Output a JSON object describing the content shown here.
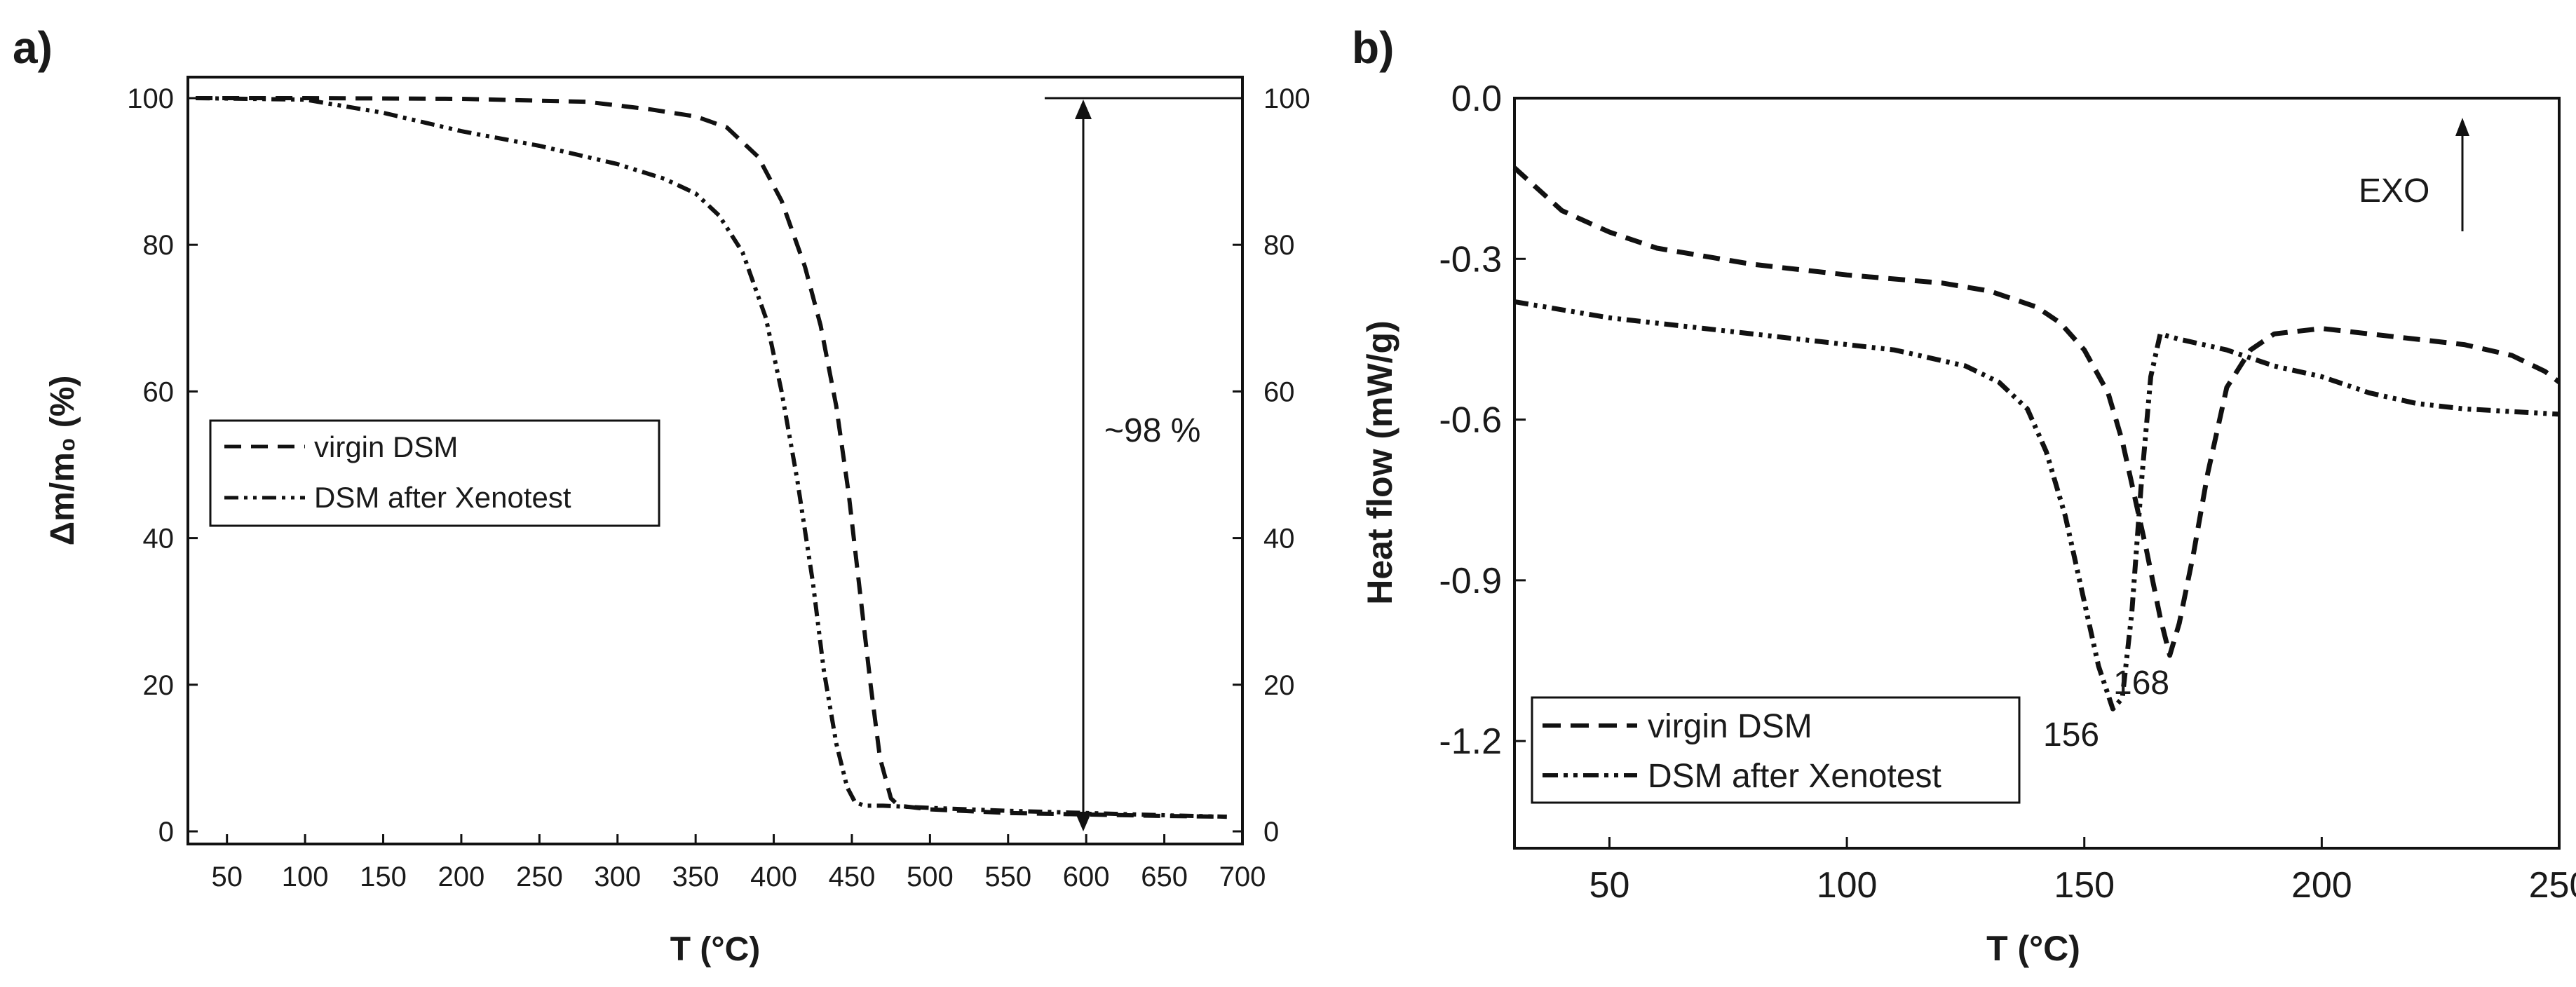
{
  "chart_data": [
    {
      "panel": "a)",
      "type": "line",
      "xlabel": "T (°C)",
      "ylabel": "Δm/m₀ (%)",
      "xlim": [
        25,
        700
      ],
      "ylim": [
        0,
        100
      ],
      "y2lim": [
        0,
        100
      ],
      "xticks": [
        "50",
        "100",
        "150",
        "200",
        "250",
        "300",
        "350",
        "400",
        "450",
        "500",
        "550",
        "600",
        "650",
        "700"
      ],
      "yticks": [
        "0",
        "20",
        "40",
        "60",
        "80",
        "100"
      ],
      "y2ticks": [
        "0",
        "20",
        "40",
        "60",
        "80",
        "100"
      ],
      "legend_position": "middle-left",
      "annotation": "~98 %",
      "series": [
        {
          "name": "virgin DSM",
          "style": "dash",
          "x": [
            30,
            100,
            200,
            280,
            320,
            350,
            370,
            390,
            405,
            420,
            430,
            440,
            448,
            455,
            462,
            468,
            475,
            480,
            500,
            550,
            600,
            650,
            690
          ],
          "y": [
            100,
            100,
            99.9,
            99.5,
            98.5,
            97.5,
            96,
            92,
            86,
            77,
            69,
            58,
            46,
            33,
            20,
            10,
            4.5,
            3.5,
            3,
            2.5,
            2.3,
            2.1,
            2
          ]
        },
        {
          "name": "DSM after Xenotest",
          "style": "dash-dot-dot",
          "x": [
            30,
            100,
            150,
            200,
            250,
            300,
            330,
            350,
            365,
            380,
            395,
            405,
            415,
            425,
            432,
            440,
            447,
            452,
            458,
            470,
            500,
            550,
            600,
            650,
            690
          ],
          "y": [
            100,
            99.8,
            98,
            95.5,
            93.5,
            91,
            89,
            87,
            84,
            79,
            70,
            60,
            48,
            34,
            22,
            12,
            6,
            4,
            3.5,
            3.5,
            3.2,
            2.8,
            2.5,
            2.2,
            2
          ]
        }
      ]
    },
    {
      "panel": "b)",
      "type": "line",
      "xlabel": "T (°C)",
      "ylabel": "Heat flow (mW/g)",
      "xlim": [
        30,
        250
      ],
      "ylim": [
        -1.4,
        0
      ],
      "xticks": [
        "50",
        "100",
        "150",
        "200",
        "250"
      ],
      "yticks": [
        "0.0",
        "-0.3",
        "-0.6",
        "-0.9",
        "-1.2"
      ],
      "legend_position": "bottom-left",
      "exo_label": "EXO",
      "peak_labels": [
        "156",
        "168"
      ],
      "series": [
        {
          "name": "virgin DSM",
          "style": "dash",
          "x": [
            30,
            40,
            50,
            60,
            80,
            100,
            120,
            130,
            140,
            145,
            150,
            155,
            158,
            160,
            163,
            166,
            168,
            170,
            173,
            176,
            180,
            185,
            190,
            200,
            210,
            220,
            230,
            240,
            247,
            250
          ],
          "y": [
            -0.13,
            -0.21,
            -0.25,
            -0.28,
            -0.31,
            -0.33,
            -0.345,
            -0.36,
            -0.39,
            -0.42,
            -0.47,
            -0.55,
            -0.64,
            -0.72,
            -0.84,
            -0.97,
            -1.04,
            -0.98,
            -0.85,
            -0.7,
            -0.54,
            -0.47,
            -0.44,
            -0.43,
            -0.44,
            -0.45,
            -0.46,
            -0.48,
            -0.51,
            -0.53
          ]
        },
        {
          "name": "DSM after Xenotest",
          "style": "dash-dot-dot",
          "x": [
            30,
            50,
            70,
            90,
            110,
            125,
            132,
            138,
            142,
            146,
            150,
            153,
            156,
            158,
            160,
            162,
            164,
            166,
            170,
            180,
            190,
            200,
            210,
            220,
            230,
            240,
            250
          ],
          "y": [
            -0.38,
            -0.41,
            -0.43,
            -0.45,
            -0.47,
            -0.5,
            -0.53,
            -0.58,
            -0.66,
            -0.78,
            -0.94,
            -1.06,
            -1.14,
            -1.12,
            -0.96,
            -0.72,
            -0.52,
            -0.44,
            -0.45,
            -0.47,
            -0.5,
            -0.52,
            -0.55,
            -0.57,
            -0.58,
            -0.585,
            -0.59
          ]
        }
      ]
    }
  ]
}
